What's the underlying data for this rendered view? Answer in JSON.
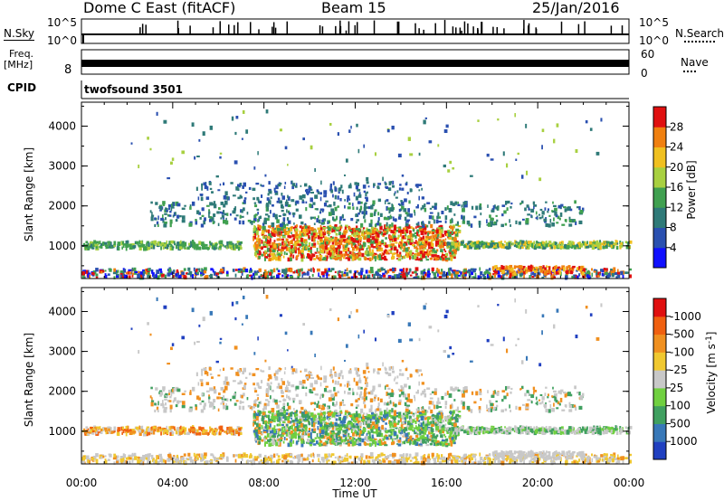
{
  "header": {
    "title": "Dome C East (fitACF)",
    "beam": "Beam 15",
    "date": "25/Jan/2016"
  },
  "strip_labels": {
    "nsky": "N.Sky",
    "nsearch": "N.Search",
    "nsky_top": "10^5",
    "nsky_bottom": "10^0",
    "freq": "Freq.",
    "freq_unit": "[MHz]",
    "freq_low": "8",
    "nave": "Nave",
    "nave_top": "60",
    "nave_bottom": "0",
    "cpid": "CPID",
    "cpid_value": "twofsound 3501"
  },
  "chart_data": [
    {
      "type": "heatmap",
      "name": "power",
      "ylabel": "Slant Range [km]",
      "yticks": [
        "1000",
        "2000",
        "3000",
        "4000"
      ],
      "ylim": [
        180,
        4600
      ],
      "colorbar_label": "Power [dB]",
      "colorbar_ticks": [
        "4",
        "8",
        "12",
        "16",
        "20",
        "24",
        "28"
      ],
      "colorbar_colors": [
        "#1010ff",
        "#2a50b0",
        "#2f7a78",
        "#40a050",
        "#a8d040",
        "#f0c020",
        "#f08010",
        "#e01010"
      ]
    },
    {
      "type": "heatmap",
      "name": "velocity",
      "ylabel": "Slant Range [km]",
      "yticks": [
        "1000",
        "2000",
        "3000",
        "4000"
      ],
      "ylim": [
        180,
        4600
      ],
      "xlabel": "Time UT",
      "xticks": [
        "00:00",
        "04:00",
        "08:00",
        "12:00",
        "16:00",
        "20:00",
        "00:00"
      ],
      "colorbar_label": "Velocity [m s^-1]",
      "colorbar_ticks": [
        "1000",
        "500",
        "100",
        "25",
        "-25",
        "-100",
        "-500",
        "-1000"
      ],
      "colorbar_colors": [
        "#2040c0",
        "#3878b8",
        "#40a060",
        "#70d040",
        "#c8c8c8",
        "#f0c830",
        "#f09020",
        "#f06010",
        "#e01010"
      ]
    }
  ]
}
